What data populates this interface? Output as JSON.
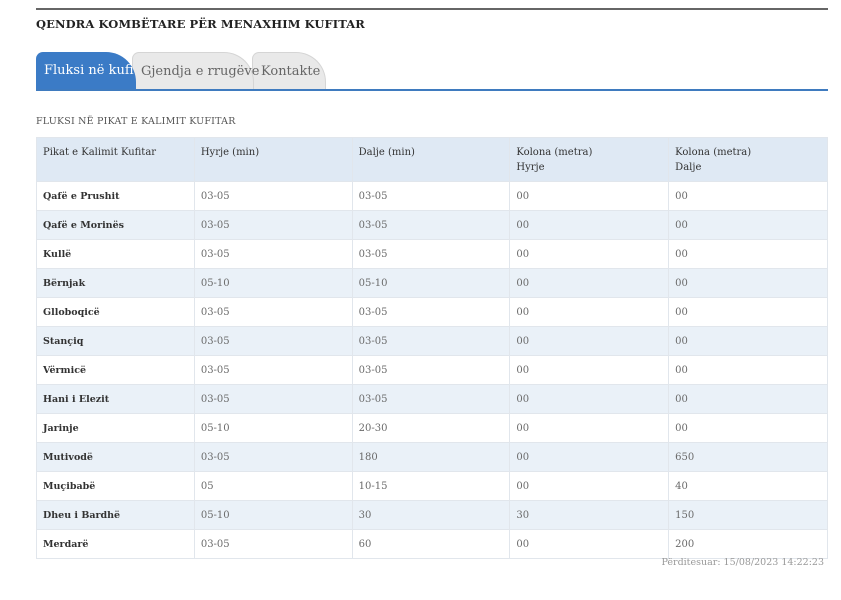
{
  "header": {
    "title": "QENDRA KOMBËTARE PËR MENAXHIM KUFITAR"
  },
  "tabs": [
    {
      "label": "Fluksi në kufi",
      "active": true
    },
    {
      "label": "Gjendja e rrugëve",
      "active": false
    },
    {
      "label": "Kontakte",
      "active": false
    }
  ],
  "section": {
    "title": "FLUKSI NË PIKAT E KALIMIT KUFITAR"
  },
  "table": {
    "headers": [
      [
        "Pikat e Kalimit Kufitar"
      ],
      [
        "Hyrje (min)"
      ],
      [
        "Dalje (min)"
      ],
      [
        "Kolona (metra)",
        "Hyrje"
      ],
      [
        "Kolona (metra)",
        "Dalje"
      ]
    ],
    "rows": [
      [
        "Qafë e Prushit",
        "03-05",
        "03-05",
        "00",
        "00"
      ],
      [
        "Qafë e Morinës",
        "03-05",
        "03-05",
        "00",
        "00"
      ],
      [
        "Kullë",
        "03-05",
        "03-05",
        "00",
        "00"
      ],
      [
        "Bërnjak",
        "05-10",
        "05-10",
        "00",
        "00"
      ],
      [
        "Glloboqicë",
        "03-05",
        "03-05",
        "00",
        "00"
      ],
      [
        "Stançiq",
        "03-05",
        "03-05",
        "00",
        "00"
      ],
      [
        "Vërmicë",
        "03-05",
        "03-05",
        "00",
        "00"
      ],
      [
        "Hani i Elezit",
        "03-05",
        "03-05",
        "00",
        "00"
      ],
      [
        "Jarinje",
        "05-10",
        "20-30",
        "00",
        "00"
      ],
      [
        "Mutivodë",
        "03-05",
        "180",
        "00",
        "650"
      ],
      [
        "Muçibabë",
        "05",
        "10-15",
        "00",
        "40"
      ],
      [
        "Dheu i Bardhë",
        "05-10",
        "30",
        "30",
        "150"
      ],
      [
        "Merdarë",
        "03-05",
        "60",
        "00",
        "200"
      ]
    ]
  },
  "footer": {
    "updated": "Përditesuar: 15/08/2023 14:22:23"
  },
  "colors": {
    "accent": "#3b7bc6",
    "header_bg": "#dfe9f4",
    "row_alt": "#eaf1f8"
  }
}
